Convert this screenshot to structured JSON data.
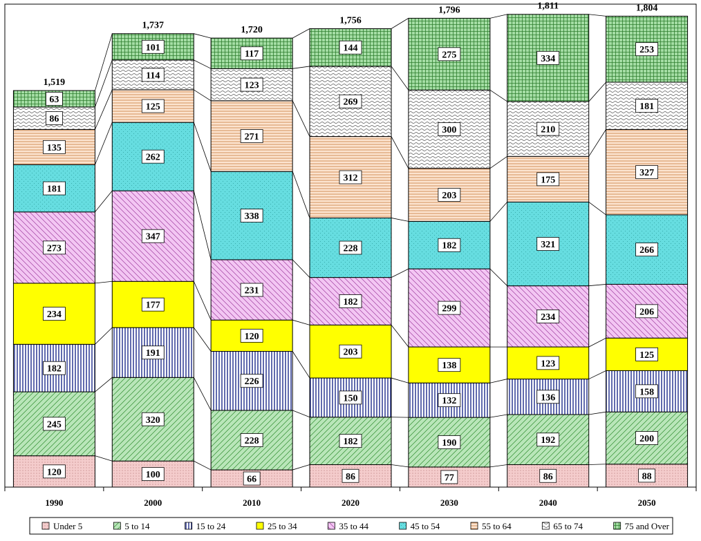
{
  "chart_data": {
    "type": "bar",
    "stacked": true,
    "title": "",
    "xlabel": "",
    "ylabel": "",
    "categories": [
      "1990",
      "2000",
      "2010",
      "2020",
      "2030",
      "2040",
      "2050"
    ],
    "totals": [
      "1,519",
      "1,737",
      "1,720",
      "1,756",
      "1,796",
      "1,811",
      "1,804"
    ],
    "series": [
      {
        "name": "Under 5",
        "values": [
          120,
          100,
          66,
          86,
          77,
          86,
          88
        ],
        "color": "#f4cccc",
        "pattern": "dots"
      },
      {
        "name": "5 to 14",
        "values": [
          245,
          320,
          228,
          182,
          190,
          192,
          200
        ],
        "color": "#b9e6b9",
        "pattern": "diag-up"
      },
      {
        "name": "15 to 24",
        "values": [
          182,
          191,
          226,
          150,
          132,
          136,
          158
        ],
        "color": "#ffffff",
        "pattern": "vertical-blue"
      },
      {
        "name": "25 to 34",
        "values": [
          234,
          177,
          120,
          203,
          138,
          123,
          125
        ],
        "color": "#ffff00",
        "pattern": "solid"
      },
      {
        "name": "35 to 44",
        "values": [
          273,
          347,
          231,
          182,
          299,
          234,
          206
        ],
        "color": "#f3c6f3",
        "pattern": "diag-down"
      },
      {
        "name": "45 to 54",
        "values": [
          181,
          262,
          338,
          228,
          182,
          321,
          266
        ],
        "color": "#66dde0",
        "pattern": "cross-dots"
      },
      {
        "name": "55 to 64",
        "values": [
          135,
          125,
          271,
          312,
          203,
          175,
          327
        ],
        "color": "#fce4d0",
        "pattern": "horizontal"
      },
      {
        "name": "65 to 74",
        "values": [
          86,
          114,
          123,
          269,
          300,
          210,
          181
        ],
        "color": "#ffffff",
        "pattern": "waves"
      },
      {
        "name": "75 and Over",
        "values": [
          63,
          101,
          117,
          144,
          275,
          334,
          253
        ],
        "color": "#a4dda4",
        "pattern": "grid"
      }
    ],
    "ylim": [
      0,
      1850
    ],
    "grid": false,
    "legend": "bottom"
  }
}
